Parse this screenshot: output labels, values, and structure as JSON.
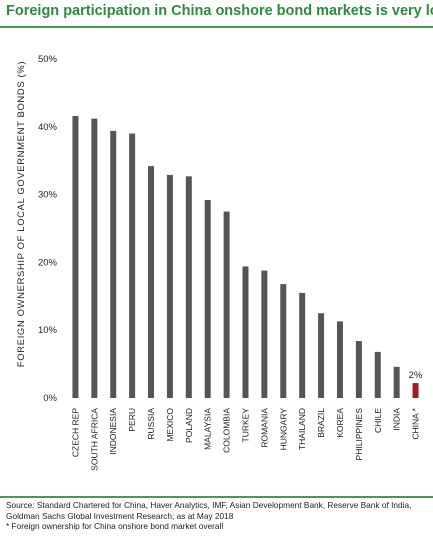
{
  "title": "Foreign participation in China onshore bond markets is very low",
  "source": "Source: Standard Chartered for China, Haver Analytics, IMF, Asian Development Bank, Reserve Bank of India, Goldman Sachs Global Investment Research; as at May 2018",
  "footnote": "* Foreign ownership for China onshore bond market overall",
  "colors": {
    "title": "#2e8b3d",
    "bar": "#555555",
    "highlight": "#a11d21",
    "rule": "#4a9a4a"
  },
  "chart_data": {
    "type": "bar",
    "ylabel": "FOREIGN OWNERSHIP OF LOCAL GOVERNMENT BONDS (%)",
    "xlabel": "",
    "ylim": [
      0,
      50
    ],
    "yticks": [
      "0%",
      "10%",
      "20%",
      "30%",
      "40%",
      "50%"
    ],
    "grid": false,
    "categories": [
      "CZECH REP",
      "SOUTH AFRICA",
      "INDONESIA",
      "PERU",
      "RUSSIA",
      "MEXICO",
      "POLAND",
      "MALAYSIA",
      "COLOMBIA",
      "TURKEY",
      "ROMANIA",
      "HUNGARY",
      "THAILAND",
      "BRAZIL",
      "KOREA",
      "PHILIPPINES",
      "CHILE",
      "INDIA",
      "CHINA *"
    ],
    "values": [
      41.6,
      41.2,
      39.4,
      39.0,
      34.2,
      32.9,
      32.7,
      29.2,
      27.5,
      19.4,
      18.8,
      16.8,
      15.5,
      12.5,
      11.3,
      8.4,
      6.8,
      4.6,
      2.2
    ],
    "highlight_index": 18,
    "annotations": [
      {
        "category": "CHINA *",
        "text": "2%"
      }
    ]
  }
}
